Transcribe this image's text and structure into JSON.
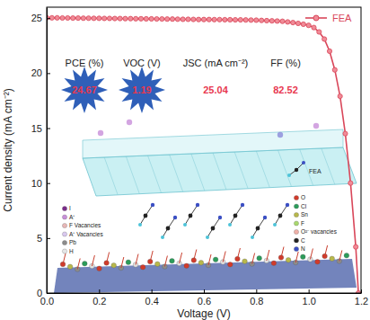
{
  "chart_data": {
    "type": "line",
    "x_label": "Voltage (V)",
    "y_label": "Current density (mA cm⁻²)",
    "x": [
      0,
      0.02,
      0.04,
      0.06,
      0.08,
      0.1,
      0.12,
      0.14,
      0.16,
      0.18,
      0.2,
      0.22,
      0.24,
      0.26,
      0.28,
      0.3,
      0.32,
      0.34,
      0.36,
      0.38,
      0.4,
      0.42,
      0.44,
      0.46,
      0.48,
      0.5,
      0.52,
      0.54,
      0.56,
      0.58,
      0.6,
      0.62,
      0.64,
      0.66,
      0.68,
      0.7,
      0.72,
      0.74,
      0.76,
      0.78,
      0.8,
      0.82,
      0.84,
      0.86,
      0.88,
      0.9,
      0.92,
      0.94,
      0.96,
      0.98,
      1.0,
      1.02,
      1.04,
      1.06,
      1.08,
      1.1,
      1.12,
      1.14,
      1.16,
      1.18,
      1.19
    ],
    "series": [
      {
        "name": "FEA",
        "color": "#d9475a",
        "marker": "circle",
        "line_style": "solid",
        "values": [
          25.04,
          25.03,
          25.03,
          25.02,
          25.02,
          25.01,
          25.01,
          25.0,
          25.0,
          24.99,
          24.99,
          24.98,
          24.98,
          24.97,
          24.97,
          24.96,
          24.96,
          24.95,
          24.95,
          24.94,
          24.94,
          24.93,
          24.93,
          24.92,
          24.92,
          24.91,
          24.9,
          24.9,
          24.89,
          24.88,
          24.88,
          24.88,
          24.87,
          24.87,
          24.86,
          24.86,
          24.85,
          24.85,
          24.84,
          24.83,
          24.82,
          24.8,
          24.78,
          24.76,
          24.74,
          24.72,
          24.66,
          24.6,
          24.53,
          24.45,
          24.35,
          24.15,
          23.75,
          23.1,
          22.0,
          20.3,
          17.9,
          14.5,
          10.0,
          4.2,
          0
        ]
      }
    ],
    "xlim": [
      0,
      1.2
    ],
    "xticks": [
      {
        "value": 0,
        "label": "0.0"
      },
      0.2,
      0.4,
      0.6,
      0.8,
      {
        "value": 1,
        "label": "1.0"
      },
      1.2
    ],
    "ylim": [
      0,
      26
    ],
    "yticks": [
      0,
      5,
      10,
      15,
      20,
      25
    ],
    "legend": "upper right",
    "grid": false,
    "stats": [
      {
        "label": "PCE (%)",
        "value": 24.67
      },
      {
        "label": "VOC (V)",
        "value": 1.19
      },
      {
        "label": "JSC (mA cm⁻²)",
        "value": 25.04
      },
      {
        "label": "FF (%)",
        "value": 82.52
      }
    ],
    "annotations": [
      "I",
      "A⁺",
      "F Vacancies",
      "A⁺ Vacancies",
      "Pb",
      "H",
      "O",
      "Cl",
      "Sn",
      "F",
      "O²⁻ vacancies",
      "C",
      "N",
      "FEA"
    ]
  }
}
